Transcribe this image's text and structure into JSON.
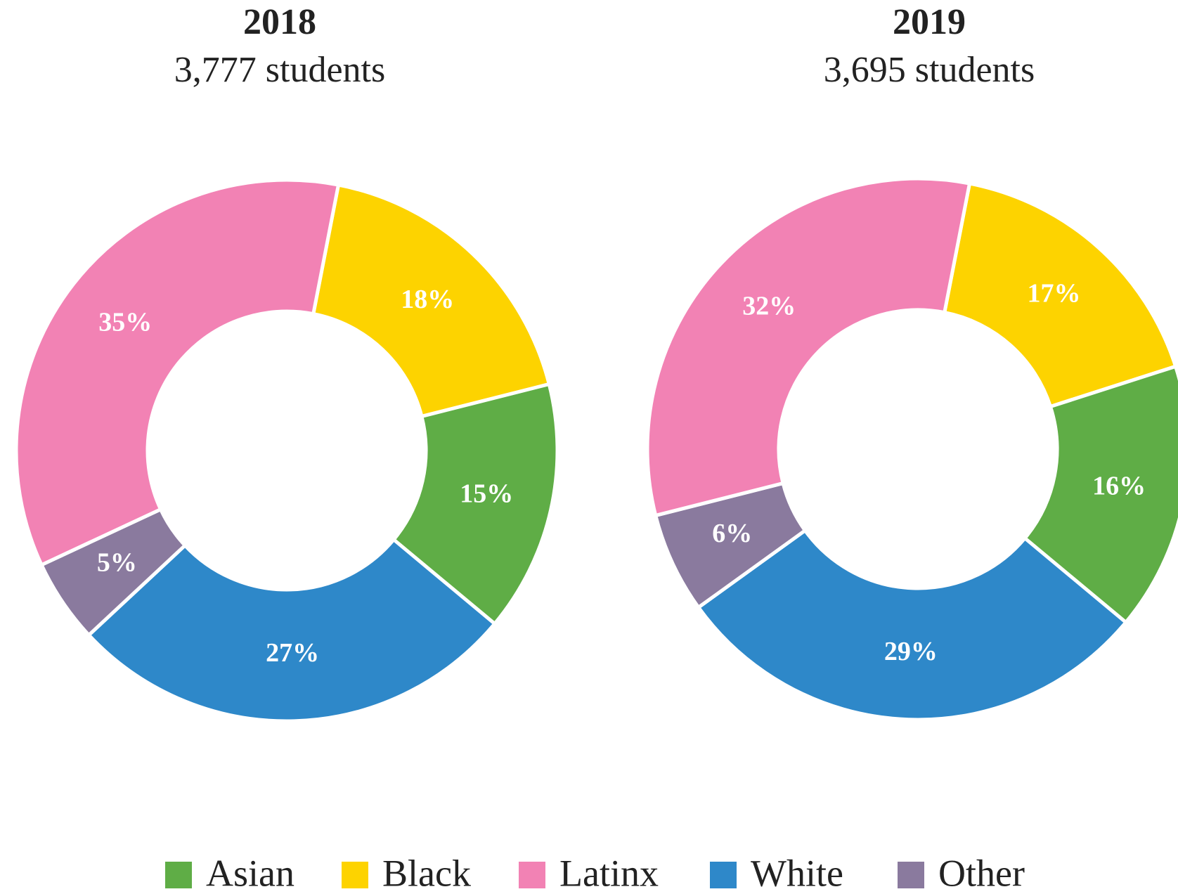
{
  "chart_data": [
    {
      "type": "pie",
      "title": "2018",
      "subtitle": "3,777 students",
      "categories": [
        "Asian",
        "Black",
        "Latinx",
        "White",
        "Other"
      ],
      "values": [
        15,
        18,
        35,
        27,
        5
      ],
      "value_labels": [
        "15%",
        "18%",
        "35%",
        "27%",
        "5%"
      ],
      "colors": [
        "#5fad46",
        "#fdd300",
        "#f282b4",
        "#2e88c9",
        "#8a7a9e"
      ]
    },
    {
      "type": "pie",
      "title": "2019",
      "subtitle": "3,695 students",
      "categories": [
        "Asian",
        "Black",
        "Latinx",
        "White",
        "Other"
      ],
      "values": [
        16,
        17,
        32,
        29,
        6
      ],
      "value_labels": [
        "16%",
        "17%",
        "32%",
        "29%",
        "6%"
      ],
      "colors": [
        "#5fad46",
        "#fdd300",
        "#f282b4",
        "#2e88c9",
        "#8a7a9e"
      ]
    }
  ]
}
